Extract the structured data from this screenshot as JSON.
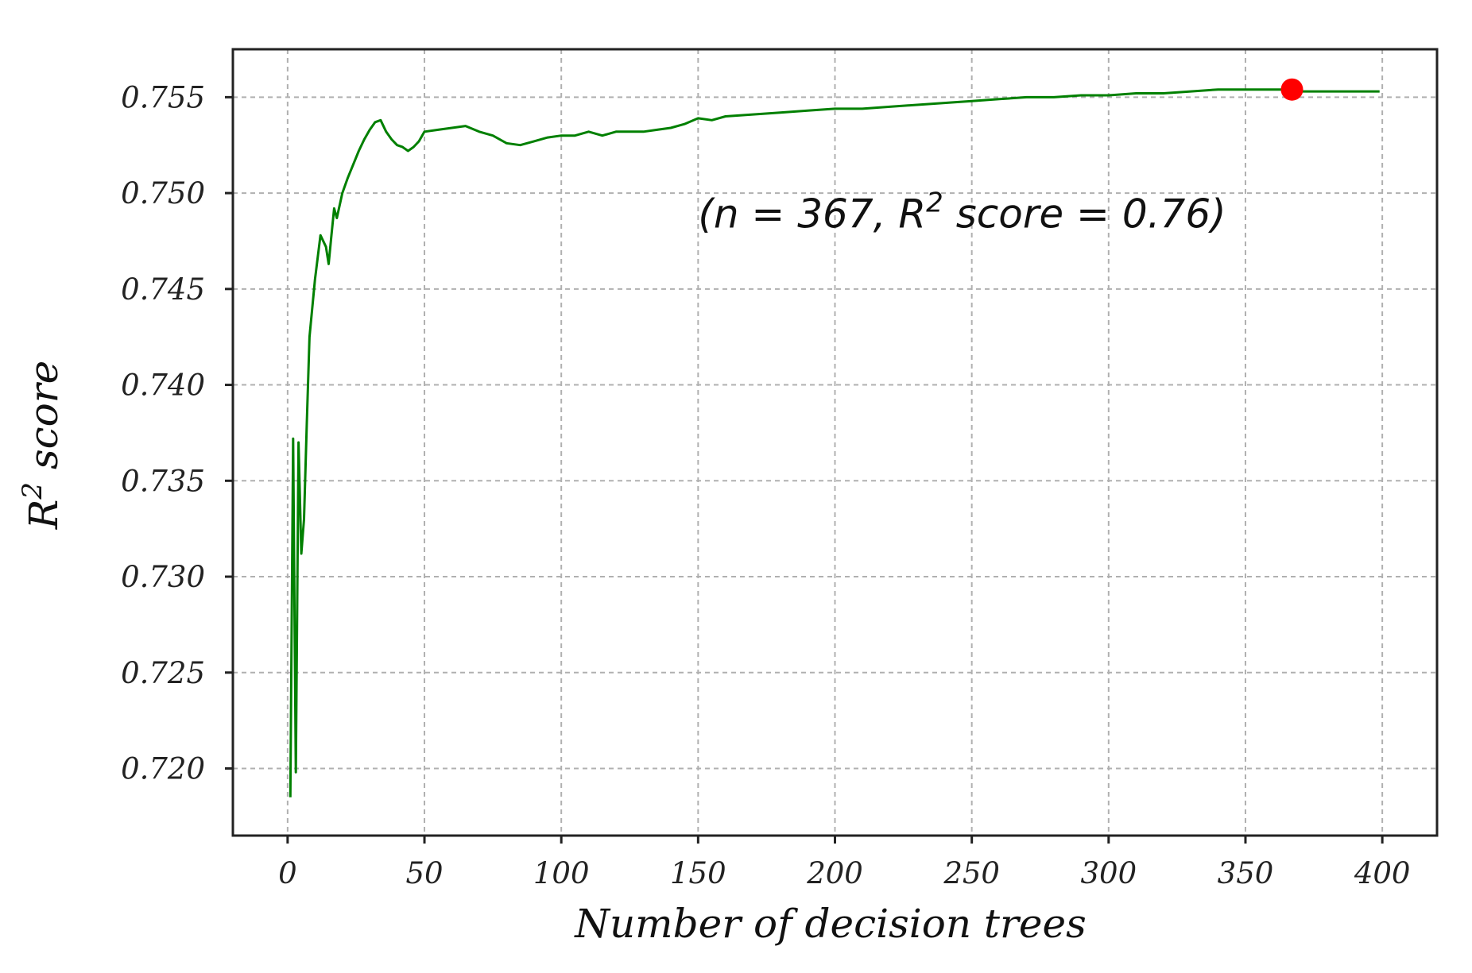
{
  "chart_data": {
    "type": "line",
    "title": "",
    "xlabel": "Number of decision trees",
    "ylabel": "R² score",
    "xlim": [
      -20,
      420
    ],
    "ylim": [
      0.7165,
      0.7575
    ],
    "xticks": [
      0,
      50,
      100,
      150,
      200,
      250,
      300,
      350,
      400
    ],
    "yticks": [
      0.72,
      0.725,
      0.73,
      0.735,
      0.74,
      0.745,
      0.75,
      0.755
    ],
    "xtick_labels": [
      "0",
      "50",
      "100",
      "150",
      "200",
      "250",
      "300",
      "350",
      "400"
    ],
    "ytick_labels": [
      "0.720",
      "0.725",
      "0.730",
      "0.735",
      "0.740",
      "0.745",
      "0.750",
      "0.755"
    ],
    "grid": true,
    "series": [
      {
        "color": "#008000",
        "x": [
          1,
          2,
          3,
          4,
          5,
          6,
          7,
          8,
          10,
          12,
          14,
          15,
          16,
          17,
          18,
          20,
          22,
          24,
          26,
          28,
          30,
          32,
          34,
          36,
          38,
          40,
          42,
          44,
          46,
          48,
          50,
          55,
          60,
          65,
          70,
          75,
          80,
          85,
          90,
          95,
          100,
          105,
          110,
          115,
          120,
          125,
          130,
          135,
          140,
          145,
          150,
          155,
          160,
          170,
          180,
          190,
          200,
          210,
          220,
          230,
          240,
          250,
          260,
          270,
          280,
          290,
          300,
          310,
          320,
          330,
          340,
          350,
          360,
          367,
          370,
          380,
          390,
          399
        ],
        "y": [
          0.7185,
          0.7372,
          0.7198,
          0.737,
          0.7312,
          0.733,
          0.738,
          0.7425,
          0.7455,
          0.7478,
          0.7472,
          0.7463,
          0.7478,
          0.7492,
          0.7487,
          0.75,
          0.7508,
          0.7515,
          0.7522,
          0.7528,
          0.7533,
          0.7537,
          0.7538,
          0.7532,
          0.7528,
          0.7525,
          0.7524,
          0.7522,
          0.7524,
          0.7527,
          0.7532,
          0.7533,
          0.7534,
          0.7535,
          0.7532,
          0.753,
          0.7526,
          0.7525,
          0.7527,
          0.7529,
          0.753,
          0.753,
          0.7532,
          0.753,
          0.7532,
          0.7532,
          0.7532,
          0.7533,
          0.7534,
          0.7536,
          0.7539,
          0.7538,
          0.754,
          0.7541,
          0.7542,
          0.7543,
          0.7544,
          0.7544,
          0.7545,
          0.7546,
          0.7547,
          0.7548,
          0.7549,
          0.755,
          0.755,
          0.7551,
          0.7551,
          0.7552,
          0.7552,
          0.7553,
          0.7554,
          0.7554,
          0.7554,
          0.7554,
          0.7553,
          0.7553,
          0.7553,
          0.7553
        ]
      }
    ],
    "highlight_point": {
      "x": 367,
      "y": 0.7554,
      "color": "#ff0000"
    },
    "annotation": {
      "text_before": "(n = 367, R",
      "superscript": "2",
      "text_after": " score = 0.76)",
      "x": 150,
      "y": 0.7482
    }
  },
  "axis_labels": {
    "xlabel": "Number of decision trees",
    "ylabel_main": "R",
    "ylabel_sup": "2",
    "ylabel_rest": " score"
  }
}
